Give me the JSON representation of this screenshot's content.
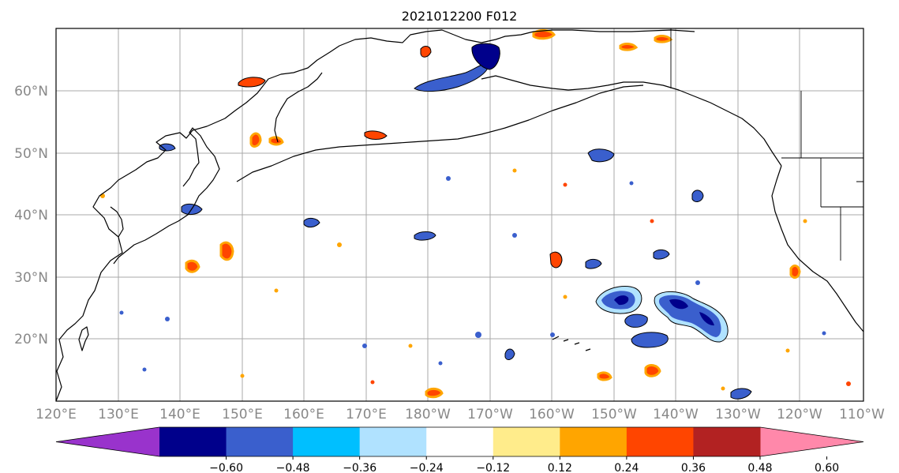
{
  "title": "2021012200 F012",
  "map": {
    "lon_range": [
      "120°E",
      "110°W"
    ],
    "lat_range": [
      "10°N",
      "70°N"
    ],
    "gridlines": true,
    "lon_labels": [
      "120°E",
      "130°E",
      "140°E",
      "150°E",
      "160°E",
      "170°E",
      "180°W",
      "170°W",
      "160°W",
      "150°W",
      "140°W",
      "130°W",
      "120°W",
      "110°W"
    ],
    "lat_labels": [
      "20°N",
      "30°N",
      "40°N",
      "50°N",
      "60°N"
    ]
  },
  "colorbar": {
    "ticks": [
      "−0.60",
      "−0.48",
      "−0.36",
      "−0.24",
      "−0.12",
      "0.12",
      "0.24",
      "0.36",
      "0.48",
      "0.60"
    ],
    "colors": [
      "#9933cc",
      "#00008b",
      "#3a5fcd",
      "#00bfff",
      "#b0e2ff",
      "#ffffff",
      "#ffec8b",
      "#ffa500",
      "#ff4500",
      "#b22222",
      "#ff88aa"
    ],
    "extend": "both"
  }
}
